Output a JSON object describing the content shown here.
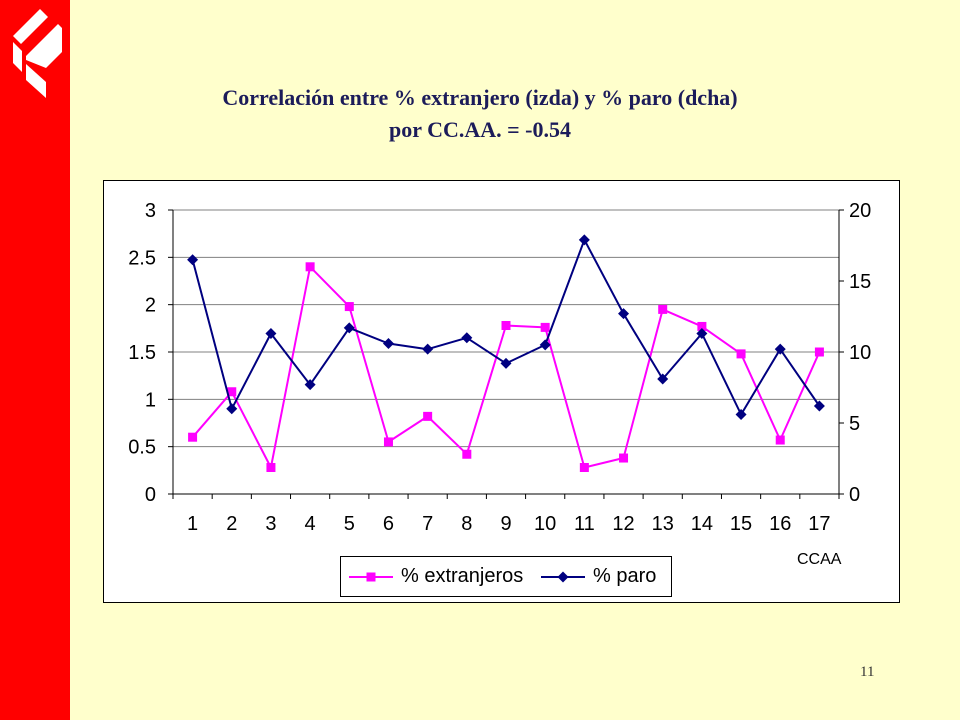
{
  "slide": {
    "title_line1": "Correlación entre % extranjero (izda) y % paro (dcha)",
    "title_line2": "por CC.AA. = -0.54",
    "page_number": "11",
    "logo_icon": "company-logo-icon"
  },
  "colors": {
    "background": "#FFFFCC",
    "sidebar": "#FF0000",
    "title": "#1c1c5a"
  },
  "chart_data": {
    "type": "line",
    "categories": [
      "1",
      "2",
      "3",
      "4",
      "5",
      "6",
      "7",
      "8",
      "9",
      "10",
      "11",
      "12",
      "13",
      "14",
      "15",
      "16",
      "17"
    ],
    "series": [
      {
        "name": "% extranjeros",
        "axis": "left",
        "color": "#FF00FF",
        "marker": "square",
        "values": [
          0.6,
          1.08,
          0.28,
          2.4,
          1.98,
          0.55,
          0.82,
          0.42,
          1.78,
          1.76,
          0.28,
          0.38,
          1.95,
          1.77,
          1.48,
          0.57,
          1.5
        ]
      },
      {
        "name": "% paro",
        "axis": "right",
        "color": "#000080",
        "marker": "diamond",
        "values": [
          16.5,
          6.0,
          11.3,
          7.7,
          11.7,
          10.6,
          10.2,
          11.0,
          9.2,
          10.5,
          17.9,
          12.7,
          8.1,
          11.3,
          5.6,
          10.2,
          6.2
        ]
      }
    ],
    "xlabel": "CCAA",
    "y_left": {
      "range": [
        0,
        3
      ],
      "ticks": [
        "0",
        "0.5",
        "1",
        "1.5",
        "2",
        "2.5",
        "3"
      ]
    },
    "y_right": {
      "range": [
        0,
        20
      ],
      "ticks": [
        "0",
        "5",
        "10",
        "15",
        "20"
      ]
    },
    "grid": true,
    "legend": "bottom"
  }
}
